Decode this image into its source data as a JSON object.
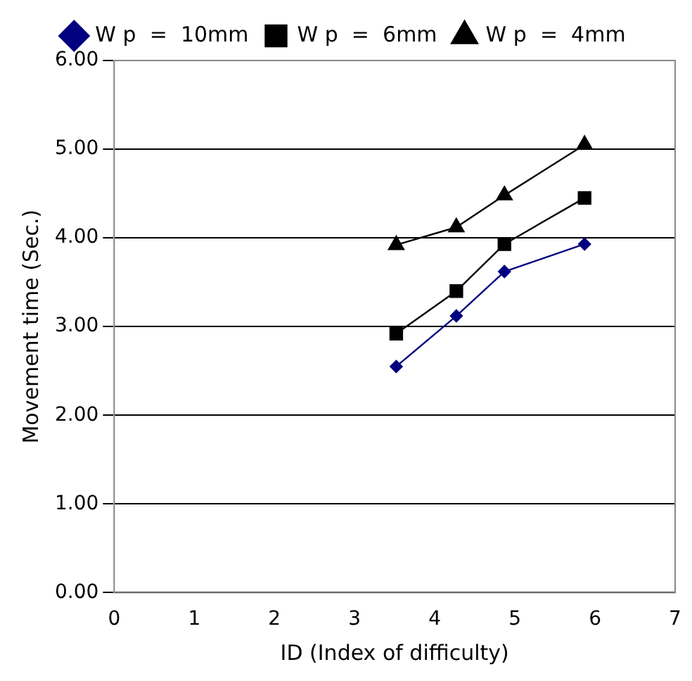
{
  "chart_data": {
    "type": "line",
    "xlabel": "ID (Index of difficulty)",
    "ylabel": "Movement time (Sec.)",
    "xlim": [
      0,
      7
    ],
    "xticks": [
      0,
      1,
      2,
      3,
      4,
      5,
      6,
      7
    ],
    "ylim": [
      0,
      6
    ],
    "yticks": [
      {
        "value": 0,
        "label": "0.00"
      },
      {
        "value": 1,
        "label": "1.00"
      },
      {
        "value": 2,
        "label": "2.00"
      },
      {
        "value": 3,
        "label": "3.00"
      },
      {
        "value": 4,
        "label": "4.00"
      },
      {
        "value": 5,
        "label": "5.00"
      },
      {
        "value": 6,
        "label": "6.00"
      }
    ],
    "grid": "y",
    "legend": "top",
    "line_style": "solid",
    "series": [
      {
        "name": "W p  =  10mm",
        "color": "#000080",
        "marker": "diamond",
        "x": [
          3.52,
          4.27,
          4.87,
          5.87
        ],
        "values": [
          2.55,
          3.12,
          3.62,
          3.93
        ]
      },
      {
        "name": "W p  =  6mm",
        "color": "#000000",
        "marker": "square",
        "x": [
          3.52,
          4.27,
          4.87,
          5.87
        ],
        "values": [
          2.92,
          3.4,
          3.93,
          4.45
        ]
      },
      {
        "name": "W p  =  4mm",
        "color": "#000000",
        "marker": "triangle",
        "x": [
          3.52,
          4.27,
          4.87,
          5.87
        ],
        "values": [
          3.92,
          4.12,
          4.48,
          5.05
        ]
      }
    ]
  }
}
